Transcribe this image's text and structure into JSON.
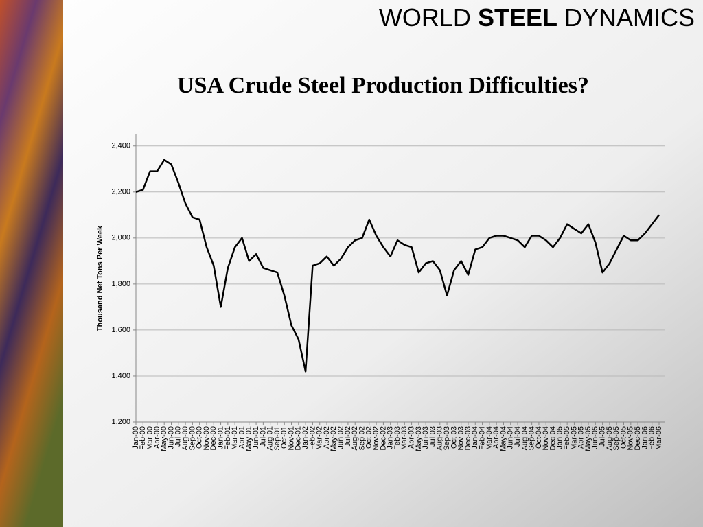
{
  "header": {
    "left": "WORLD",
    "bold": "STEEL",
    "right": "DYNAMICS"
  },
  "chart_data": {
    "type": "line",
    "title": "USA Crude Steel Production Difficulties?",
    "ylabel": "Thousand Net Tons Per Week",
    "color": "#000000",
    "grid": true,
    "categories": [
      "Jan-00",
      "Feb-00",
      "Mar-00",
      "Apr-00",
      "May-00",
      "Jun-00",
      "Jul-00",
      "Aug-00",
      "Sep-00",
      "Oct-00",
      "Nov-00",
      "Dec-00",
      "Jan-01",
      "Feb-01",
      "Mar-01",
      "Apr-01",
      "May-01",
      "Jun-01",
      "Jul-01",
      "Aug-01",
      "Sep-01",
      "Oct-01",
      "Nov-01",
      "Dec-01",
      "Jan-02",
      "Feb-02",
      "Mar-02",
      "Apr-02",
      "May-02",
      "Jun-02",
      "Jul-02",
      "Aug-02",
      "Sep-02",
      "Oct-02",
      "Nov-02",
      "Dec-02",
      "Jan-03",
      "Feb-03",
      "Mar-03",
      "Apr-03",
      "May-03",
      "Jun-03",
      "Jul-03",
      "Aug-03",
      "Sep-03",
      "Oct-03",
      "Nov-03",
      "Dec-03",
      "Jan-04",
      "Feb-04",
      "Mar-04",
      "Apr-04",
      "May-04",
      "Jun-04",
      "Jul-04",
      "Aug-04",
      "Sep-04",
      "Oct-04",
      "Nov-04",
      "Dec-04",
      "Jan-05",
      "Feb-05",
      "Mar-05",
      "Apr-05",
      "May-05",
      "Jun-05",
      "Jul-05",
      "Aug-05",
      "Sep-05",
      "Oct-05",
      "Nov-05",
      "Dec-05",
      "Jan-06",
      "Feb-06",
      "Mar-06"
    ],
    "values": [
      2200,
      2210,
      2290,
      2290,
      2340,
      2320,
      2240,
      2150,
      2090,
      2080,
      1960,
      1880,
      1700,
      1870,
      1960,
      2000,
      1900,
      1930,
      1870,
      1860,
      1850,
      1750,
      1620,
      1560,
      1420,
      1880,
      1890,
      1920,
      1880,
      1910,
      1960,
      1990,
      2000,
      2080,
      2010,
      1960,
      1920,
      1990,
      1970,
      1960,
      1850,
      1890,
      1900,
      1860,
      1750,
      1860,
      1900,
      1840,
      1950,
      1960,
      2000,
      2010,
      2010,
      2000,
      1990,
      1960,
      2010,
      2010,
      1990,
      1960,
      2000,
      2060,
      2040,
      2020,
      2060,
      1980,
      1850,
      1890,
      1950,
      2010,
      1990,
      1990,
      2020,
      2060,
      2100
    ],
    "ylim": [
      1200,
      2450
    ],
    "yticks": [
      {
        "value": 1200,
        "label": "1,200"
      },
      {
        "value": 1400,
        "label": "1,400"
      },
      {
        "value": 1600,
        "label": "1,600"
      },
      {
        "value": 1800,
        "label": "1,800"
      },
      {
        "value": 2000,
        "label": "2,000"
      },
      {
        "value": 2200,
        "label": "2,200"
      },
      {
        "value": 2400,
        "label": "2,400"
      }
    ]
  }
}
